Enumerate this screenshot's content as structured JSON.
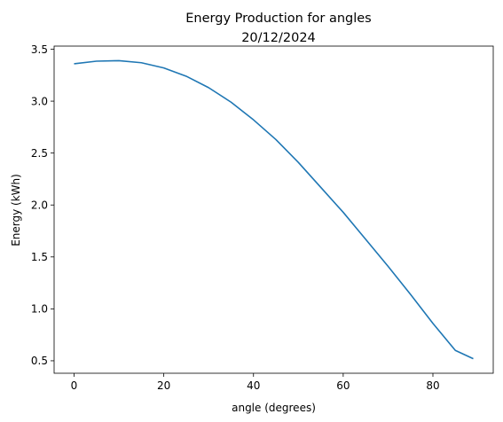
{
  "chart_data": {
    "type": "line",
    "title": "Energy Production for angles",
    "subtitle": "20/12/2024",
    "xlabel": "angle (degrees)",
    "ylabel": "Energy (kWh)",
    "xlim": [
      -4.45,
      93.45
    ],
    "ylim": [
      0.38,
      3.53
    ],
    "xticks": [
      0,
      20,
      40,
      60,
      80
    ],
    "xtick_labels": [
      "0",
      "20",
      "40",
      "60",
      "80"
    ],
    "yticks": [
      0.5,
      1.0,
      1.5,
      2.0,
      2.5,
      3.0,
      3.5
    ],
    "ytick_labels": [
      "0.5",
      "1.0",
      "1.5",
      "2.0",
      "2.5",
      "3.0",
      "3.5"
    ],
    "grid": false,
    "series": [
      {
        "color": "#1f77b4",
        "x": [
          0,
          5,
          10,
          15,
          20,
          25,
          30,
          35,
          40,
          45,
          50,
          55,
          60,
          65,
          70,
          75,
          80,
          85,
          89
        ],
        "y": [
          3.36,
          3.385,
          3.39,
          3.37,
          3.32,
          3.24,
          3.13,
          2.99,
          2.82,
          2.63,
          2.41,
          2.17,
          1.93,
          1.67,
          1.41,
          1.14,
          0.86,
          0.6,
          0.52
        ]
      }
    ]
  }
}
